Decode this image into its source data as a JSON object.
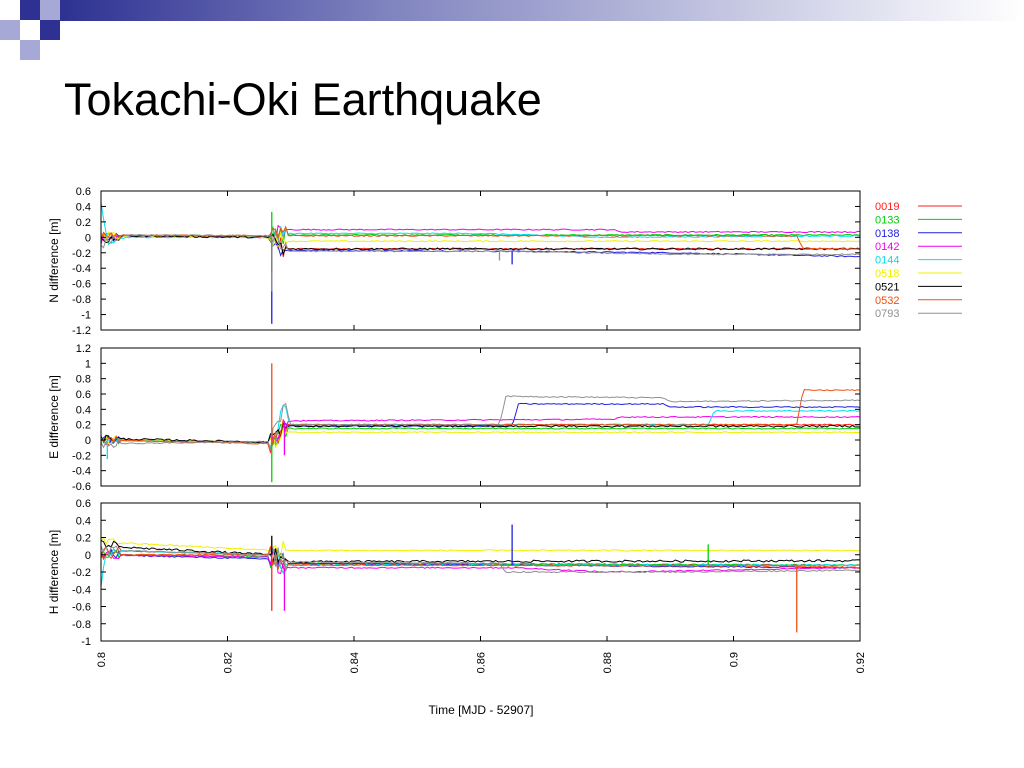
{
  "slide": {
    "title": "Tokachi-Oki Earthquake",
    "decor_colors": {
      "navy": "#2e3192",
      "light": "#a6a8d6"
    }
  },
  "chart_data": {
    "type": "line",
    "xlabel": "Time [MJD - 52907]",
    "xlim": [
      0.8,
      0.92
    ],
    "xticks": [
      "0.8",
      "0.82",
      "0.84",
      "0.86",
      "0.88",
      "0.9",
      "0.92"
    ],
    "legend_position": "right",
    "series": [
      {
        "name": "0019",
        "color": "#ff2020"
      },
      {
        "name": "0133",
        "color": "#00d000"
      },
      {
        "name": "0138",
        "color": "#2020e0"
      },
      {
        "name": "0142",
        "color": "#f000f0"
      },
      {
        "name": "0144",
        "color": "#00e0f0"
      },
      {
        "name": "0518",
        "color": "#f0f000"
      },
      {
        "name": "0521",
        "color": "#000000"
      },
      {
        "name": "0532",
        "color": "#f05010"
      },
      {
        "name": "0793",
        "color": "#909090"
      }
    ],
    "panels": [
      {
        "ylabel": "N difference [m]",
        "ylim": [
          -1.2,
          0.6
        ],
        "yticks": [
          "0.6",
          "0.4",
          "0.2",
          "0",
          "-0.2",
          "-0.4",
          "-0.6",
          "-0.8",
          "-1",
          "-1.2"
        ],
        "levels": {
          "0019": [
            [
              0.8,
              0.0
            ],
            [
              0.804,
              0.02
            ],
            [
              0.827,
              0.0
            ],
            [
              0.829,
              -0.15
            ],
            [
              0.92,
              -0.15
            ]
          ],
          "0133": [
            [
              0.8,
              0.0
            ],
            [
              0.804,
              0.02
            ],
            [
              0.827,
              0.0
            ],
            [
              0.829,
              0.03
            ],
            [
              0.92,
              0.03
            ]
          ],
          "0138": [
            [
              0.8,
              -0.02
            ],
            [
              0.804,
              0.02
            ],
            [
              0.827,
              0.0
            ],
            [
              0.829,
              -0.17
            ],
            [
              0.865,
              -0.18
            ],
            [
              0.89,
              -0.2
            ],
            [
              0.92,
              -0.25
            ]
          ],
          "0142": [
            [
              0.8,
              -0.03
            ],
            [
              0.804,
              0.02
            ],
            [
              0.827,
              0.0
            ],
            [
              0.829,
              0.1
            ],
            [
              0.881,
              0.1
            ],
            [
              0.882,
              0.07
            ],
            [
              0.92,
              0.07
            ]
          ],
          "0144": [
            [
              0.8,
              0.45
            ],
            [
              0.801,
              -0.05
            ],
            [
              0.804,
              0.0
            ],
            [
              0.827,
              0.0
            ],
            [
              0.829,
              0.05
            ],
            [
              0.86,
              0.05
            ],
            [
              0.88,
              0.0
            ],
            [
              0.92,
              0.02
            ]
          ],
          "0518": [
            [
              0.8,
              0.0
            ],
            [
              0.804,
              0.02
            ],
            [
              0.827,
              0.0
            ],
            [
              0.829,
              -0.05
            ],
            [
              0.92,
              -0.05
            ]
          ],
          "0521": [
            [
              0.8,
              -0.05
            ],
            [
              0.804,
              0.02
            ],
            [
              0.827,
              0.0
            ],
            [
              0.828,
              -0.15
            ],
            [
              0.92,
              -0.15
            ]
          ],
          "0532": [
            [
              0.8,
              0.0
            ],
            [
              0.804,
              0.03
            ],
            [
              0.827,
              0.02
            ],
            [
              0.829,
              0.02
            ],
            [
              0.91,
              0.02
            ],
            [
              0.911,
              -0.15
            ],
            [
              0.92,
              -0.15
            ]
          ],
          "0793": [
            [
              0.8,
              -0.1
            ],
            [
              0.804,
              0.03
            ],
            [
              0.827,
              0.02
            ],
            [
              0.829,
              -0.18
            ],
            [
              0.863,
              -0.18
            ],
            [
              0.89,
              -0.22
            ],
            [
              0.92,
              -0.22
            ]
          ]
        },
        "spikes": [
          {
            "series": "0138",
            "x": 0.827,
            "y": -1.12
          },
          {
            "series": "0133",
            "x": 0.827,
            "y": 0.33
          },
          {
            "series": "0521",
            "x": 0.827,
            "y": -0.45
          },
          {
            "series": "0793",
            "x": 0.827,
            "y": -0.7
          },
          {
            "series": "0138",
            "x": 0.865,
            "y": -0.35
          },
          {
            "series": "0793",
            "x": 0.863,
            "y": -0.3
          }
        ]
      },
      {
        "ylabel": "E difference [m]",
        "ylim": [
          -0.6,
          1.2
        ],
        "yticks": [
          "1.2",
          "1",
          "0.8",
          "0.6",
          "0.4",
          "0.2",
          "0",
          "-0.2",
          "-0.4",
          "-0.6"
        ],
        "levels": {
          "0019": [
            [
              0.8,
              0.0
            ],
            [
              0.827,
              -0.03
            ],
            [
              0.829,
              0.2
            ],
            [
              0.92,
              0.2
            ]
          ],
          "0133": [
            [
              0.8,
              0.0
            ],
            [
              0.827,
              -0.03
            ],
            [
              0.829,
              0.15
            ],
            [
              0.92,
              0.15
            ]
          ],
          "0138": [
            [
              0.8,
              0.0
            ],
            [
              0.827,
              -0.03
            ],
            [
              0.829,
              0.18
            ],
            [
              0.865,
              0.18
            ],
            [
              0.866,
              0.47
            ],
            [
              0.889,
              0.47
            ],
            [
              0.89,
              0.43
            ],
            [
              0.92,
              0.43
            ]
          ],
          "0142": [
            [
              0.8,
              0.0
            ],
            [
              0.827,
              -0.03
            ],
            [
              0.829,
              0.25
            ],
            [
              0.881,
              0.27
            ],
            [
              0.882,
              0.3
            ],
            [
              0.92,
              0.3
            ]
          ],
          "0144": [
            [
              0.8,
              0.0
            ],
            [
              0.827,
              -0.03
            ],
            [
              0.829,
              0.4
            ],
            [
              0.83,
              0.2
            ],
            [
              0.896,
              0.2
            ],
            [
              0.897,
              0.38
            ],
            [
              0.92,
              0.38
            ]
          ],
          "0518": [
            [
              0.8,
              0.0
            ],
            [
              0.827,
              -0.03
            ],
            [
              0.829,
              0.1
            ],
            [
              0.92,
              0.1
            ]
          ],
          "0521": [
            [
              0.8,
              0.02
            ],
            [
              0.827,
              -0.03
            ],
            [
              0.828,
              0.18
            ],
            [
              0.92,
              0.18
            ]
          ],
          "0532": [
            [
              0.8,
              0.0
            ],
            [
              0.827,
              -0.05
            ],
            [
              0.829,
              0.2
            ],
            [
              0.91,
              0.2
            ],
            [
              0.911,
              0.65
            ],
            [
              0.92,
              0.65
            ]
          ],
          "0793": [
            [
              0.8,
              -0.05
            ],
            [
              0.827,
              -0.02
            ],
            [
              0.829,
              0.5
            ],
            [
              0.83,
              0.2
            ],
            [
              0.863,
              0.2
            ],
            [
              0.864,
              0.57
            ],
            [
              0.889,
              0.55
            ],
            [
              0.89,
              0.5
            ],
            [
              0.92,
              0.52
            ]
          ]
        },
        "spikes": [
          {
            "series": "0532",
            "x": 0.827,
            "y": 1.0
          },
          {
            "series": "0133",
            "x": 0.827,
            "y": -0.55
          },
          {
            "series": "0142",
            "x": 0.829,
            "y": -0.2
          },
          {
            "series": "0144",
            "x": 0.801,
            "y": -0.25
          }
        ]
      },
      {
        "ylabel": "H difference [m]",
        "ylim": [
          -1.0,
          0.6
        ],
        "yticks": [
          "0.6",
          "0.4",
          "0.2",
          "0",
          "-0.2",
          "-0.4",
          "-0.6",
          "-0.8",
          "-1"
        ],
        "levels": {
          "0019": [
            [
              0.8,
              0.05
            ],
            [
              0.827,
              0.0
            ],
            [
              0.829,
              -0.1
            ],
            [
              0.92,
              -0.12
            ]
          ],
          "0133": [
            [
              0.8,
              0.0
            ],
            [
              0.827,
              -0.02
            ],
            [
              0.829,
              -0.1
            ],
            [
              0.92,
              -0.12
            ]
          ],
          "0138": [
            [
              0.8,
              0.0
            ],
            [
              0.827,
              -0.05
            ],
            [
              0.829,
              -0.1
            ],
            [
              0.865,
              -0.12
            ],
            [
              0.92,
              -0.15
            ]
          ],
          "0142": [
            [
              0.8,
              0.0
            ],
            [
              0.827,
              -0.03
            ],
            [
              0.829,
              -0.15
            ],
            [
              0.865,
              -0.15
            ],
            [
              0.88,
              -0.2
            ],
            [
              0.92,
              -0.15
            ]
          ],
          "0144": [
            [
              0.8,
              -0.35
            ],
            [
              0.801,
              0.05
            ],
            [
              0.827,
              0.0
            ],
            [
              0.829,
              -0.12
            ],
            [
              0.92,
              -0.12
            ]
          ],
          "0518": [
            [
              0.8,
              0.15
            ],
            [
              0.827,
              0.05
            ],
            [
              0.829,
              0.05
            ],
            [
              0.92,
              0.05
            ]
          ],
          "0521": [
            [
              0.8,
              0.1
            ],
            [
              0.827,
              0.0
            ],
            [
              0.829,
              -0.08
            ],
            [
              0.92,
              -0.07
            ]
          ],
          "0532": [
            [
              0.8,
              0.0
            ],
            [
              0.827,
              0.0
            ],
            [
              0.829,
              -0.12
            ],
            [
              0.91,
              -0.13
            ],
            [
              0.92,
              -0.15
            ]
          ],
          "0793": [
            [
              0.8,
              0.05
            ],
            [
              0.827,
              0.0
            ],
            [
              0.829,
              -0.08
            ],
            [
              0.863,
              -0.1
            ],
            [
              0.864,
              -0.2
            ],
            [
              0.89,
              -0.2
            ],
            [
              0.92,
              -0.18
            ]
          ]
        },
        "spikes": [
          {
            "series": "0019",
            "x": 0.827,
            "y": -0.65
          },
          {
            "series": "0521",
            "x": 0.827,
            "y": 0.22
          },
          {
            "series": "0142",
            "x": 0.829,
            "y": -0.65
          },
          {
            "series": "0138",
            "x": 0.865,
            "y": 0.35
          },
          {
            "series": "0532",
            "x": 0.91,
            "y": -0.9
          },
          {
            "series": "0133",
            "x": 0.896,
            "y": 0.12
          }
        ]
      }
    ]
  }
}
